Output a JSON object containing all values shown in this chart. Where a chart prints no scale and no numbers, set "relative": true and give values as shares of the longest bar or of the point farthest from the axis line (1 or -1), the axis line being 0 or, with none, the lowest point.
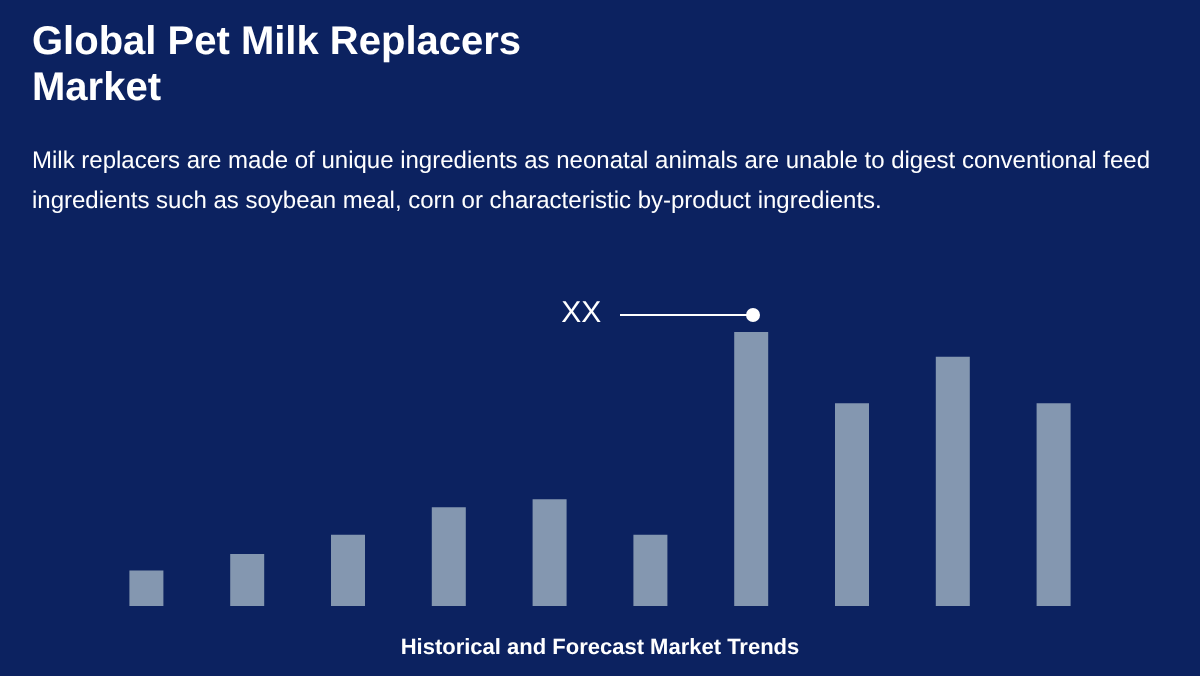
{
  "chart_data": {
    "type": "bar",
    "title": "Global Pet Milk Replacers Market",
    "subtitle": "Milk replacers are made of unique ingredients as neonatal animals are unable to digest conventional feed ingredients such as soybean meal, corn or characteristic by-product ingredients.",
    "xlabel": "Historical and Forecast Market Trends",
    "relative": true,
    "categories": [
      null,
      null,
      null,
      null,
      null,
      null,
      null,
      null,
      null,
      null
    ],
    "values": [
      0.13,
      0.19,
      0.26,
      0.36,
      0.39,
      0.26,
      1,
      0.74,
      0.91,
      0.74
    ],
    "color": "#8497b0",
    "annotations": [
      "XX"
    ]
  }
}
